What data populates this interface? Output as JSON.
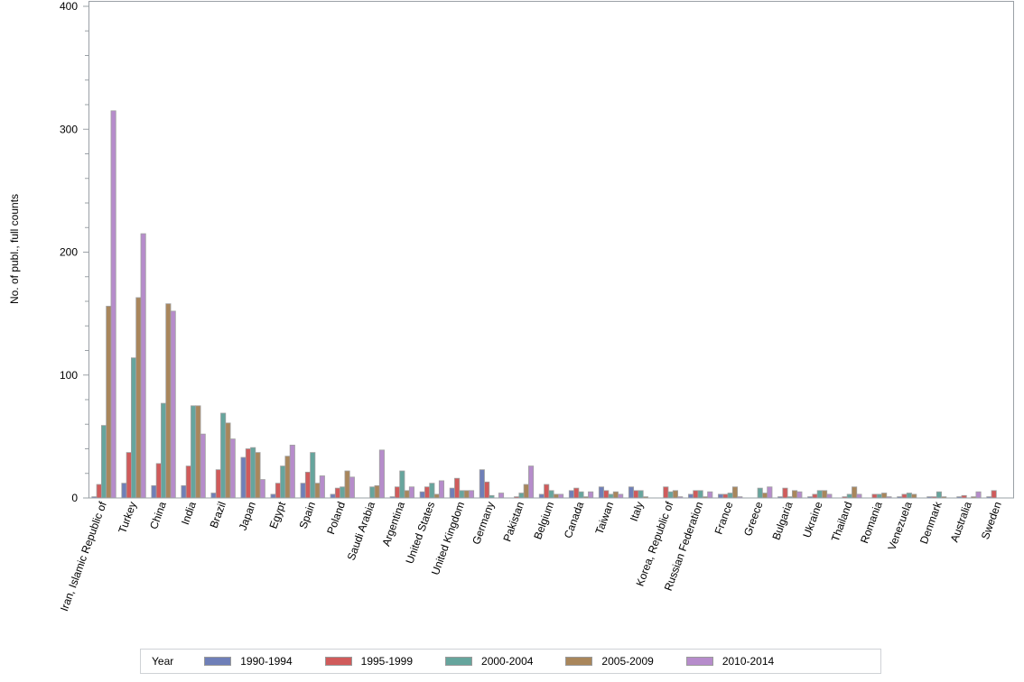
{
  "chart_data": {
    "type": "bar",
    "title": "",
    "xlabel": "",
    "ylabel": "No. of publ., full counts",
    "ylim": [
      0,
      400
    ],
    "yticks": [
      0,
      100,
      200,
      300,
      400
    ],
    "grid": false,
    "legend_position": "bottom",
    "legend_title": "Year",
    "categories": [
      "Iran, Islamic Republic of",
      "Turkey",
      "China",
      "India",
      "Brazil",
      "Japan",
      "Egypt",
      "Spain",
      "Poland",
      "Saudi Arabia",
      "Argentina",
      "United States",
      "United Kingdom",
      "Germany",
      "Pakistan",
      "Belgium",
      "Canada",
      "Taiwan",
      "Italy",
      "Korea, Republic of",
      "Russian Federation",
      "France",
      "Greece",
      "Bulgaria",
      "Ukraine",
      "Thailand",
      "Romania",
      "Venezuela",
      "Denmark",
      "Australia",
      "Sweden"
    ],
    "series": [
      {
        "name": "1990-1994",
        "color": "#6f7fb8",
        "values": [
          1,
          12,
          10,
          10,
          4,
          33,
          3,
          12,
          3,
          0,
          1,
          5,
          8,
          23,
          0,
          3,
          6,
          9,
          9,
          0,
          3,
          3,
          0,
          1,
          1,
          0,
          0,
          1,
          1,
          1,
          1
        ]
      },
      {
        "name": "1995-1999",
        "color": "#d05b5b",
        "values": [
          11,
          37,
          28,
          26,
          23,
          40,
          12,
          21,
          8,
          0,
          9,
          9,
          16,
          13,
          1,
          11,
          8,
          6,
          6,
          9,
          6,
          3,
          0,
          8,
          3,
          1,
          3,
          3,
          1,
          2,
          6
        ]
      },
      {
        "name": "2000-2004",
        "color": "#66a59d",
        "values": [
          59,
          114,
          77,
          75,
          69,
          41,
          26,
          37,
          9,
          9,
          22,
          12,
          6,
          2,
          4,
          6,
          5,
          3,
          6,
          5,
          6,
          4,
          8,
          1,
          6,
          3,
          3,
          4,
          5,
          0,
          0
        ]
      },
      {
        "name": "2005-2009",
        "color": "#a9865b",
        "values": [
          156,
          163,
          158,
          75,
          61,
          37,
          34,
          12,
          22,
          10,
          6,
          3,
          6,
          0,
          11,
          3,
          1,
          5,
          1,
          6,
          1,
          9,
          4,
          6,
          6,
          9,
          4,
          3,
          1,
          1,
          0
        ]
      },
      {
        "name": "2010-2014",
        "color": "#b68ccb",
        "values": [
          315,
          215,
          152,
          52,
          48,
          15,
          43,
          18,
          17,
          39,
          9,
          14,
          6,
          4,
          26,
          3,
          5,
          3,
          0,
          1,
          5,
          1,
          9,
          5,
          3,
          3,
          1,
          0,
          0,
          5,
          0
        ]
      }
    ]
  },
  "legend": {
    "title": "Year",
    "items": [
      {
        "label": "1990-1994",
        "color": "#6f7fb8"
      },
      {
        "label": "1995-1999",
        "color": "#d05b5b"
      },
      {
        "label": "2000-2004",
        "color": "#66a59d"
      },
      {
        "label": "2005-2009",
        "color": "#a9865b"
      },
      {
        "label": "2010-2014",
        "color": "#b68ccb"
      }
    ]
  },
  "axis": {
    "y_label": "No. of publ., full counts",
    "y_tick_labels": [
      "0",
      "100",
      "200",
      "300",
      "400"
    ]
  }
}
